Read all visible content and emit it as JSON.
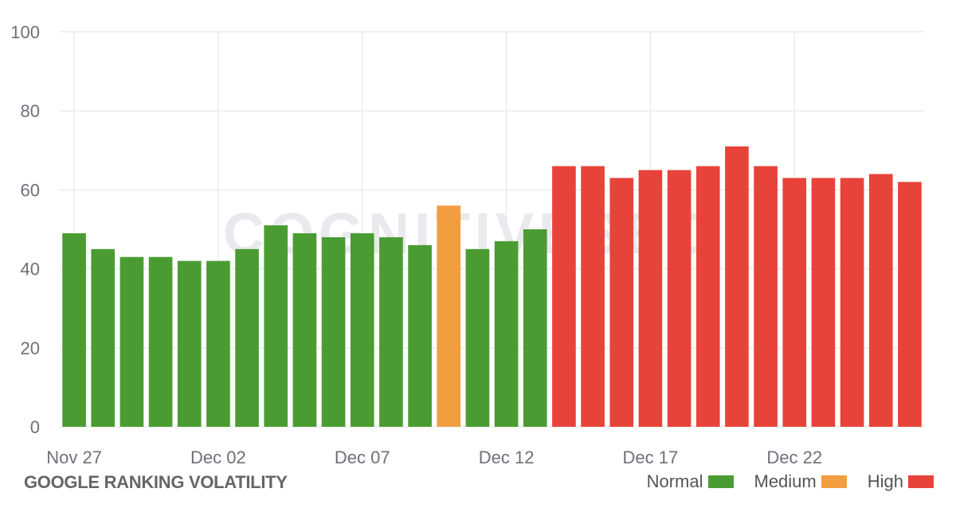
{
  "chart_data": {
    "type": "bar",
    "title": "GOOGLE RANKING VOLATILITY",
    "watermark": "COGNITIVESEO",
    "ylim": [
      0,
      100
    ],
    "yticks": [
      0,
      20,
      40,
      60,
      80,
      100
    ],
    "xtick_labels": [
      "Nov 27",
      "Dec 02",
      "Dec 07",
      "Dec 12",
      "Dec 17",
      "Dec 22"
    ],
    "categories": [
      "Nov 27",
      "Nov 28",
      "Nov 29",
      "Nov 30",
      "Dec 01",
      "Dec 02",
      "Dec 03",
      "Dec 04",
      "Dec 05",
      "Dec 06",
      "Dec 07",
      "Dec 08",
      "Dec 09",
      "Dec 10",
      "Dec 11",
      "Dec 12",
      "Dec 13",
      "Dec 14",
      "Dec 15",
      "Dec 16",
      "Dec 17",
      "Dec 18",
      "Dec 19",
      "Dec 20",
      "Dec 21",
      "Dec 22",
      "Dec 23",
      "Dec 24",
      "Dec 25",
      "Dec 26"
    ],
    "values": [
      49,
      45,
      43,
      43,
      42,
      42,
      45,
      51,
      49,
      48,
      49,
      48,
      46,
      56,
      45,
      47,
      50,
      66,
      66,
      63,
      65,
      65,
      66,
      71,
      66,
      63,
      63,
      63,
      64,
      62
    ],
    "levels": [
      "Normal",
      "Normal",
      "Normal",
      "Normal",
      "Normal",
      "Normal",
      "Normal",
      "Normal",
      "Normal",
      "Normal",
      "Normal",
      "Normal",
      "Normal",
      "Medium",
      "Normal",
      "Normal",
      "Normal",
      "High",
      "High",
      "High",
      "High",
      "High",
      "High",
      "High",
      "High",
      "High",
      "High",
      "High",
      "High",
      "High"
    ],
    "legend": [
      {
        "name": "Normal",
        "color": "#4a9c32"
      },
      {
        "name": "Medium",
        "color": "#f29d3f"
      },
      {
        "name": "High",
        "color": "#e8433a"
      }
    ],
    "grid": true,
    "legend_position": "bottom-right"
  }
}
